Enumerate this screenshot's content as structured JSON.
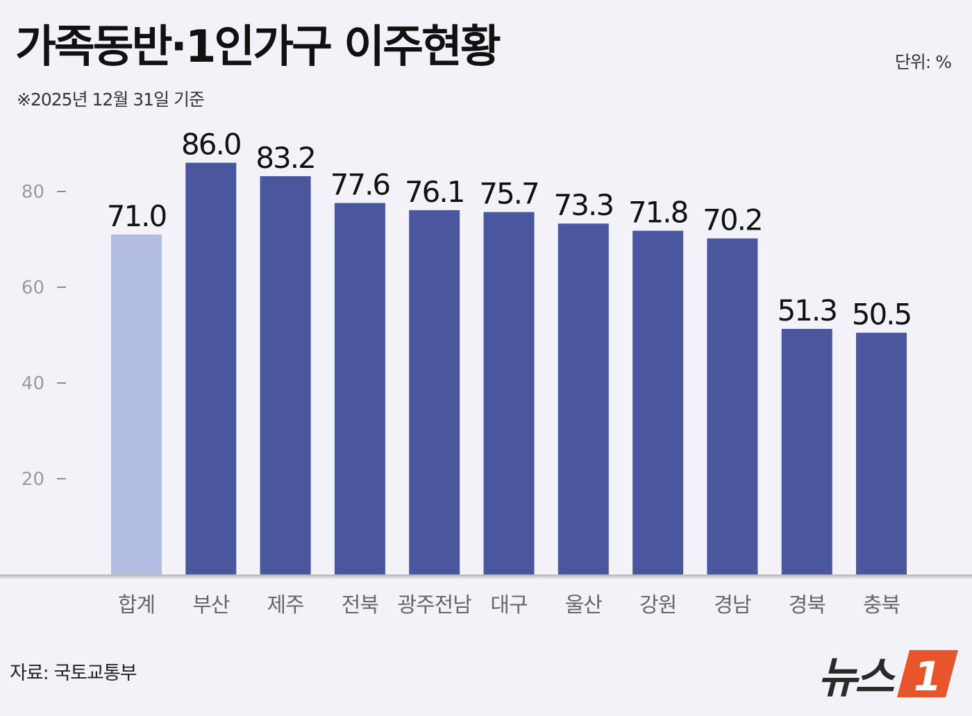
{
  "header": {
    "title": "가족동반·1인가구 이주현황",
    "subtitle": "※2025년 12월 31일 기준",
    "unit": "단위: %"
  },
  "footer": {
    "source": "자료: 국토교통부",
    "logo_text": "뉴스",
    "logo_badge": "1"
  },
  "colors": {
    "bar_total": "#b2bbe0",
    "bar_region": "#4a579f",
    "baseline": "#bdbdc4"
  },
  "chart_data": {
    "type": "bar",
    "title": "가족동반·1인가구 이주현황",
    "categories": [
      "합계",
      "부산",
      "제주",
      "전북",
      "광주전남",
      "대구",
      "울산",
      "강원",
      "경남",
      "경북",
      "충북"
    ],
    "values": [
      71.0,
      86.0,
      83.2,
      77.6,
      76.1,
      75.7,
      73.3,
      71.8,
      70.2,
      51.3,
      50.5
    ],
    "value_labels": [
      "71.0",
      "86.0",
      "83.2",
      "77.6",
      "76.1",
      "75.7",
      "73.3",
      "71.8",
      "70.2",
      "51.3",
      "50.5"
    ],
    "yticks": [
      20,
      40,
      60,
      80
    ],
    "ylim": [
      0,
      90
    ],
    "highlight_first": true,
    "grid": false,
    "legend": "none"
  }
}
